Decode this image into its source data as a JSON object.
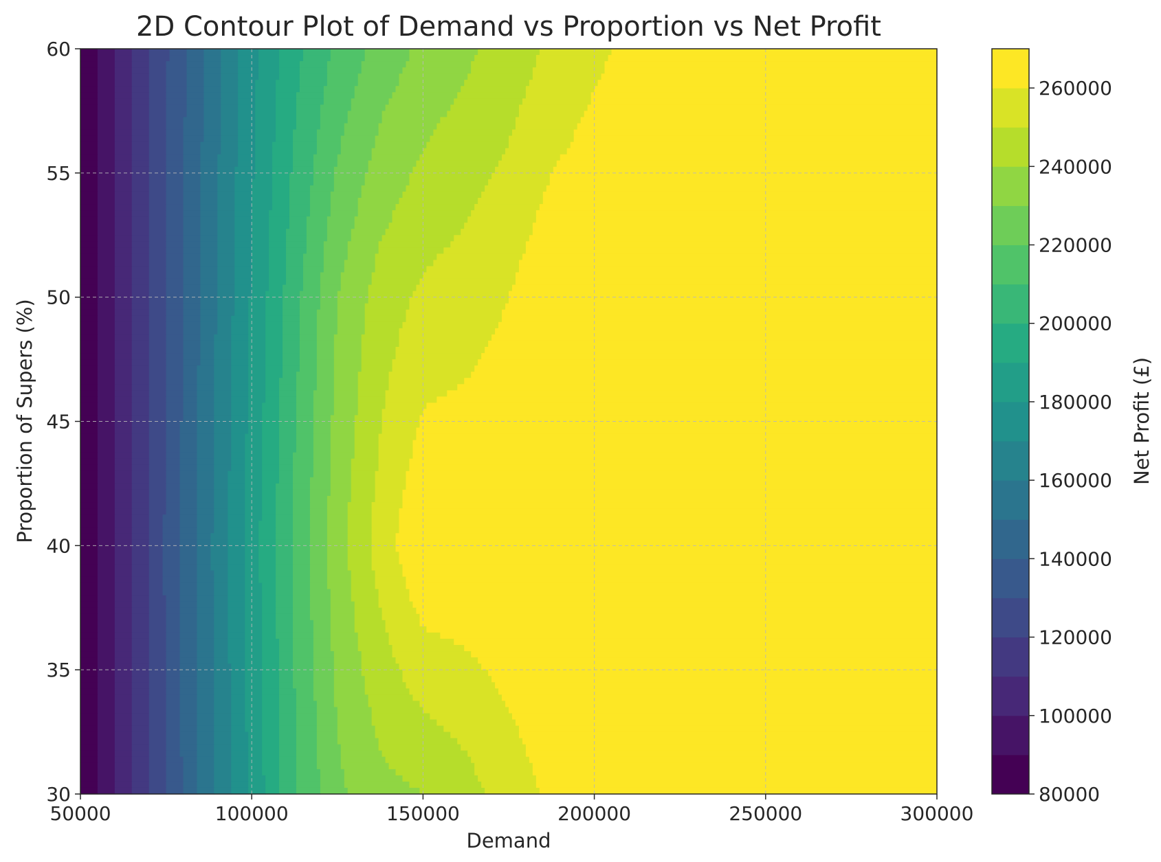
{
  "chart_data": {
    "type": "contour",
    "title": "2D Contour Plot of Demand vs Proportion vs Net Profit",
    "xlabel": "Demand",
    "ylabel": "Proportion of Supers (%)",
    "colorbar_label": "Net Profit (£)",
    "xlim": [
      50000,
      300000
    ],
    "ylim": [
      30,
      60
    ],
    "x_ticks": [
      50000,
      100000,
      150000,
      200000,
      250000,
      300000
    ],
    "y_ticks": [
      30,
      35,
      40,
      45,
      50,
      55,
      60
    ],
    "colorbar_range": [
      80000,
      270000
    ],
    "colorbar_ticks": [
      80000,
      100000,
      120000,
      140000,
      160000,
      180000,
      200000,
      220000,
      240000,
      260000
    ],
    "colormap": "viridis",
    "grid": true,
    "x": [
      50000,
      62500,
      75000,
      87500,
      100000,
      112500,
      125000,
      137500,
      150000,
      162500,
      175000,
      187500,
      200000,
      212500,
      225000,
      237500,
      250000,
      262500,
      275000,
      287500,
      300000
    ],
    "y": [
      30,
      40,
      50,
      60
    ],
    "z": [
      [
        80000,
        104500,
        130500,
        156500,
        182500,
        208500,
        228000,
        237000,
        240000,
        246000,
        255000,
        262000,
        270000,
        270000,
        270000,
        270000,
        270000,
        270000,
        270000,
        270000,
        270000
      ],
      [
        80000,
        104800,
        131200,
        158000,
        185000,
        212000,
        236000,
        254500,
        270000,
        270000,
        270000,
        270000,
        270000,
        270000,
        270000,
        270000,
        270000,
        270000,
        270000,
        270000,
        270000
      ],
      [
        80000,
        104300,
        130000,
        155500,
        181000,
        206500,
        230000,
        244500,
        252000,
        255000,
        260000,
        268000,
        270000,
        270000,
        270000,
        270000,
        270000,
        270000,
        270000,
        270000,
        270000
      ],
      [
        80000,
        104000,
        129000,
        153000,
        177000,
        197000,
        212000,
        224000,
        232000,
        238000,
        244000,
        252000,
        258000,
        263000,
        270000,
        270000,
        270000,
        270000,
        270000,
        270000,
        270000
      ]
    ]
  }
}
